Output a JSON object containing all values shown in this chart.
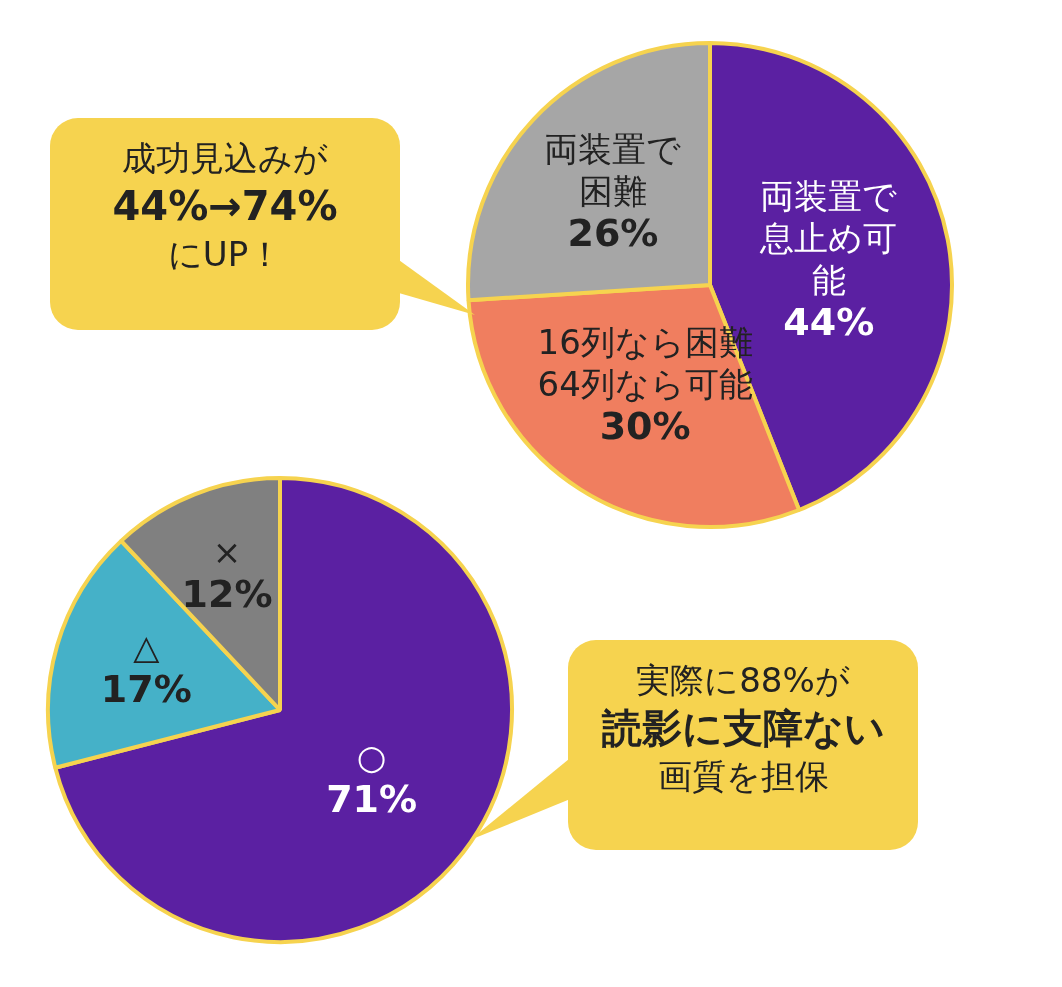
{
  "chart_data": [
    {
      "type": "pie",
      "categories": [
        "両装置で息止め可能",
        "16列なら困難64列なら可能",
        "両装置で困難"
      ],
      "values": [
        44,
        30,
        26
      ],
      "value_labels": [
        "44%",
        "30%",
        "26%"
      ],
      "colors": [
        "#5b20a2",
        "#f07e5f",
        "#a6a6a6"
      ],
      "legend": false,
      "annotations": [
        "成功見込みが",
        "44%→74%",
        "にUP！"
      ]
    },
    {
      "type": "pie",
      "categories": [
        "○",
        "△",
        "×"
      ],
      "values": [
        71,
        17,
        12
      ],
      "value_labels": [
        "71%",
        "17%",
        "12%"
      ],
      "colors": [
        "#5b20a2",
        "#45b1c8",
        "#808080"
      ],
      "legend": false,
      "annotations": [
        "実際に88%が",
        "読影に支障ない",
        "画質を担保"
      ]
    }
  ]
}
